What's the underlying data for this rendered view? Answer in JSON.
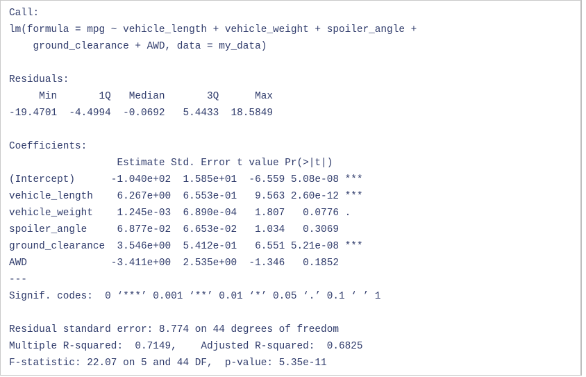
{
  "console": {
    "call_header": "Call:",
    "call_line1": "lm(formula = mpg ~ vehicle_length + vehicle_weight + spoiler_angle +",
    "call_line2": "    ground_clearance + AWD, data = my_data)",
    "residuals_header": "Residuals:",
    "residuals_cols": "     Min       1Q   Median       3Q      Max",
    "residuals_vals": "-19.4701  -4.4994  -0.0692   5.4433  18.5849",
    "coefficients_header": "Coefficients:",
    "coef_cols": "                  Estimate Std. Error t value Pr(>|t|)    ",
    "coef_rows": [
      "(Intercept)      -1.040e+02  1.585e+01  -6.559 5.08e-08 ***",
      "vehicle_length    6.267e+00  6.553e-01   9.563 2.60e-12 ***",
      "vehicle_weight    1.245e-03  6.890e-04   1.807   0.0776 .  ",
      "spoiler_angle     6.877e-02  6.653e-02   1.034   0.3069    ",
      "ground_clearance  3.546e+00  5.412e-01   6.551 5.21e-08 ***",
      "AWD              -3.411e+00  2.535e+00  -1.346   0.1852    "
    ],
    "separator": "---",
    "signif_codes": "Signif. codes:  0 ‘***’ 0.001 ‘**’ 0.01 ‘*’ 0.05 ‘.’ 0.1 ‘ ’ 1",
    "rse": "Residual standard error: 8.774 on 44 degrees of freedom",
    "r_squared": "Multiple R-squared:  0.7149,\tAdjusted R-squared:  0.6825 ",
    "f_statistic": "F-statistic: 22.07 on 5 and 44 DF,  p-value: 5.35e-11"
  }
}
